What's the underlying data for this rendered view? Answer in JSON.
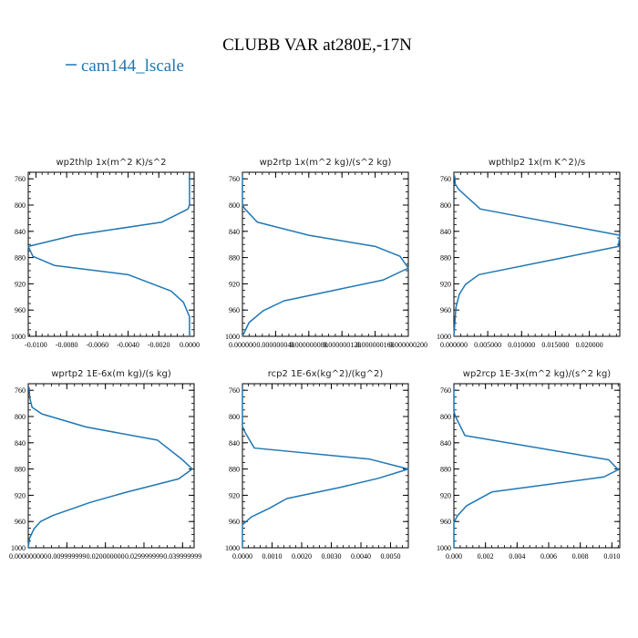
{
  "title": "CLUBB VAR at280E,-17N",
  "legend": {
    "label": "cam144_lscale",
    "color": "#1f77b4"
  },
  "chart_data": [
    {
      "type": "line",
      "title": "wp2thlp  1x(m^2 K)/s^2",
      "xlim": [
        -0.0105,
        0.0003
      ],
      "ylim": [
        1000,
        750
      ],
      "xticks": [
        -0.01,
        -0.008,
        -0.006,
        -0.004,
        -0.002,
        0.0
      ],
      "xtick_labels": [
        "-0.0100",
        "-0.0080",
        "-0.0060",
        "-0.0040",
        "-0.0020",
        "0.0000"
      ],
      "yticks": [
        760,
        800,
        840,
        880,
        920,
        960,
        1000
      ],
      "series": [
        {
          "x": [
            0.0,
            0.0,
            -0.0001,
            -0.0018,
            -0.0075,
            -0.0105,
            -0.0102,
            -0.0088,
            -0.004,
            -0.0012,
            -0.0004,
            0.0,
            0.0
          ],
          "y": [
            755,
            800,
            806,
            826,
            846,
            863,
            878,
            892,
            906,
            931,
            948,
            970,
            1000
          ]
        }
      ]
    },
    {
      "type": "line",
      "title": "wp2rtp  1x(m^2 kg)/(s^2 kg)",
      "xlim": [
        0,
        2e-07
      ],
      "ylim": [
        1000,
        750
      ],
      "xticks": [
        0,
        4e-08,
        8e-08,
        1.2e-07,
        1.6e-07,
        2e-07
      ],
      "xtick_labels": [
        "0.000000",
        "0.000000040",
        "0.000000080",
        "0.000000120",
        "0.000000160",
        "0.000000200"
      ],
      "yticks": [
        760,
        800,
        840,
        880,
        920,
        960,
        1000
      ],
      "series": [
        {
          "x": [
            0,
            0,
            3e-09,
            1.8e-08,
            8e-08,
            1.6e-07,
            1.9e-07,
            2e-07,
            1.7e-07,
            1.1e-07,
            5e-08,
            2.5e-08,
            8e-09,
            0
          ],
          "y": [
            755,
            800,
            806,
            826,
            846,
            863,
            878,
            896,
            914,
            930,
            946,
            961,
            979,
            1000
          ]
        }
      ]
    },
    {
      "type": "line",
      "title": "wpthlp2  1x(m K^2)/s",
      "xlim": [
        0,
        0.0245
      ],
      "ylim": [
        1000,
        750
      ],
      "xticks": [
        0,
        0.005,
        0.01,
        0.015,
        0.02
      ],
      "xtick_labels": [
        "0.000000",
        "0.005000",
        "0.010000",
        "0.015000",
        "0.020000"
      ],
      "yticks": [
        760,
        800,
        840,
        880,
        920,
        960,
        1000
      ],
      "series": [
        {
          "x": [
            0.0001,
            0.0002,
            0.0007,
            0.0039,
            0.0245,
            0.0243,
            0.0162,
            0.0037,
            0.0017,
            0.0008,
            0.0003,
            0.0
          ],
          "y": [
            755,
            768,
            776,
            806,
            846,
            863,
            880,
            906,
            921,
            936,
            956,
            1000
          ]
        }
      ]
    },
    {
      "type": "line",
      "title": "wprtp2  1E-6x(m kg)/(s kg)",
      "xlim": [
        0,
        0.043
      ],
      "ylim": [
        1000,
        750
      ],
      "xticks": [
        0,
        0.01,
        0.02,
        0.03,
        0.04
      ],
      "xtick_labels": [
        "0.000000000",
        "0.009999999",
        "0.020000000",
        "0.029999999",
        "0.039999999"
      ],
      "yticks": [
        760,
        800,
        840,
        880,
        920,
        960,
        1000
      ],
      "series": [
        {
          "x": [
            0.0002,
            0.0004,
            0.001,
            0.0035,
            0.015,
            0.0335,
            0.04,
            0.0425,
            0.039,
            0.025,
            0.016,
            0.0063,
            0.0032,
            0.0015,
            0.0003,
            0.0
          ],
          "y": [
            755,
            772,
            786,
            796,
            816,
            836,
            866,
            880,
            895,
            916,
            931,
            951,
            960,
            971,
            986,
            1000
          ]
        }
      ]
    },
    {
      "type": "line",
      "title": "rcp2  1E-6x(kg^2)/(kg^2)",
      "xlim": [
        0,
        0.0056
      ],
      "ylim": [
        1000,
        750
      ],
      "xticks": [
        0,
        0.001,
        0.002,
        0.003,
        0.004,
        0.005
      ],
      "xtick_labels": [
        "0.0000",
        "0.0010",
        "0.0020",
        "0.0030",
        "0.0040",
        "0.0050"
      ],
      "yticks": [
        760,
        800,
        840,
        880,
        920,
        960,
        1000
      ],
      "series": [
        {
          "x": [
            0,
            0,
            0.0001,
            0.0004,
            0.0043,
            0.0056,
            0.0046,
            0.0033,
            0.0015,
            0.0009,
            0.0003,
            0.0,
            0.0
          ],
          "y": [
            755,
            815,
            825,
            848,
            865,
            880,
            894,
            908,
            925,
            940,
            953,
            965,
            1000
          ]
        }
      ]
    },
    {
      "type": "line",
      "title": "wp2rcp  1E-3x(m^2 kg)/(s^2 kg)",
      "xlim": [
        0,
        0.0105
      ],
      "ylim": [
        1000,
        750
      ],
      "xticks": [
        0,
        0.002,
        0.004,
        0.006,
        0.008,
        0.01
      ],
      "xtick_labels": [
        "0.000",
        "0.002",
        "0.004",
        "0.006",
        "0.008",
        "0.010"
      ],
      "yticks": [
        760,
        800,
        840,
        880,
        920,
        960,
        1000
      ],
      "series": [
        {
          "x": [
            0,
            0,
            0.0001,
            0.0007,
            0.0098,
            0.0104,
            0.0095,
            0.0024,
            0.0008,
            0.0002,
            0.0,
            0.0
          ],
          "y": [
            755,
            792,
            800,
            829,
            866,
            881,
            892,
            915,
            936,
            952,
            962,
            1000
          ]
        }
      ]
    }
  ]
}
